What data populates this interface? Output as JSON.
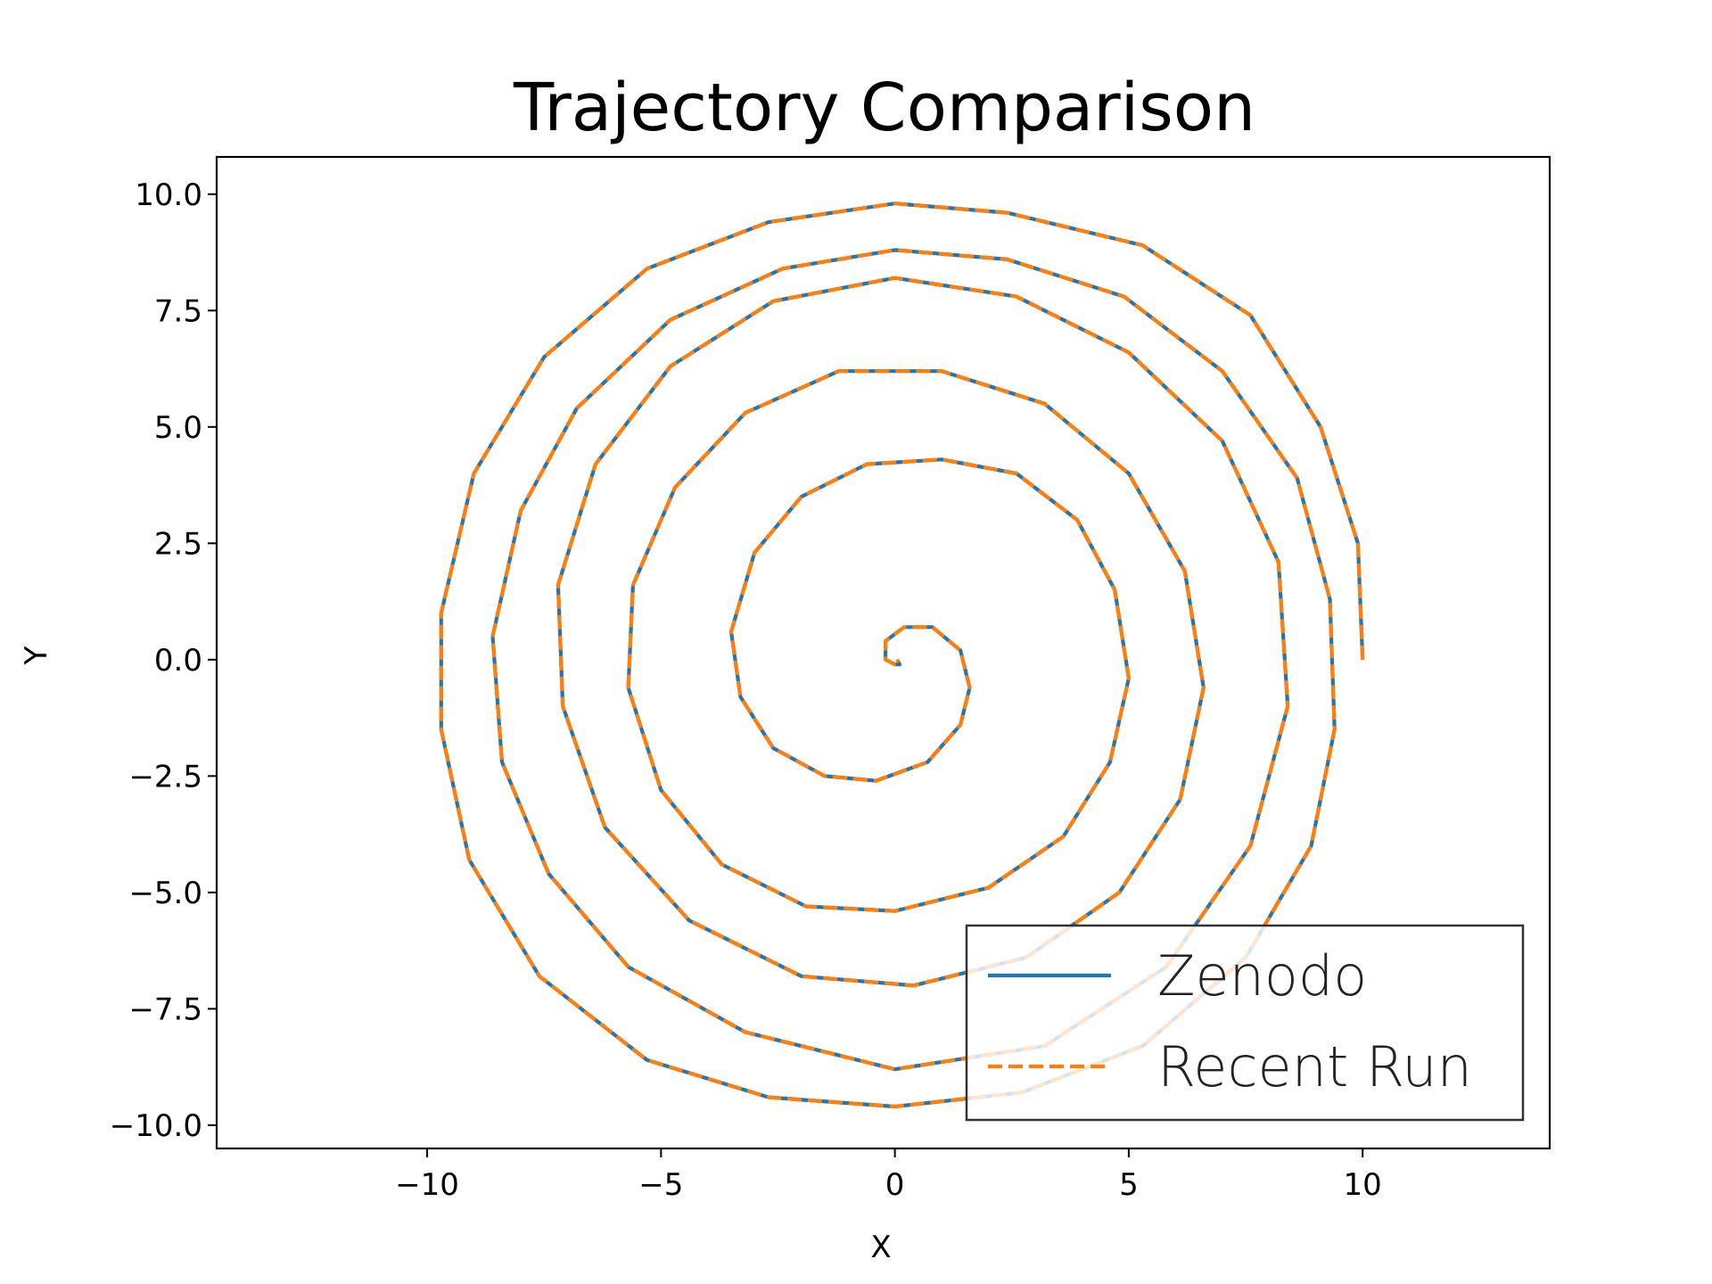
{
  "chart_data": {
    "type": "line",
    "title": "Trajectory Comparison",
    "xlabel": "X",
    "ylabel": "Y",
    "xlim": [
      -14.5,
      14.0
    ],
    "ylim": [
      -10.5,
      10.8
    ],
    "xticks": [
      -10,
      -5,
      0,
      5,
      10
    ],
    "yticks": [
      10.0,
      7.5,
      5.0,
      2.5,
      0.0,
      -2.5,
      -5.0,
      -7.5,
      -10.0
    ],
    "xtick_labels": [
      "−10",
      "−5",
      "0",
      "5",
      "10"
    ],
    "ytick_labels": [
      "10.0",
      "7.5",
      "5.0",
      "2.5",
      "0.0",
      "−2.5",
      "−5.0",
      "−7.5",
      "−10.0"
    ],
    "grid": false,
    "legend_position": "lower right",
    "series": [
      {
        "name": "Zenodo",
        "color": "#1f77b4",
        "style": "solid",
        "points": [
          [
            10.0,
            0.0
          ],
          [
            9.9,
            2.5
          ],
          [
            9.1,
            5.0
          ],
          [
            7.6,
            7.4
          ],
          [
            5.3,
            8.9
          ],
          [
            2.4,
            9.6
          ],
          [
            0.0,
            9.8
          ],
          [
            -2.7,
            9.4
          ],
          [
            -5.3,
            8.4
          ],
          [
            -7.5,
            6.5
          ],
          [
            -9.0,
            4.0
          ],
          [
            -9.7,
            1.0
          ],
          [
            -9.7,
            -1.5
          ],
          [
            -9.1,
            -4.3
          ],
          [
            -7.6,
            -6.8
          ],
          [
            -5.3,
            -8.6
          ],
          [
            -2.7,
            -9.4
          ],
          [
            0.0,
            -9.6
          ],
          [
            2.7,
            -9.3
          ],
          [
            5.3,
            -8.3
          ],
          [
            7.5,
            -6.4
          ],
          [
            8.9,
            -4.0
          ],
          [
            9.4,
            -1.5
          ],
          [
            9.3,
            1.3
          ],
          [
            8.6,
            3.9
          ],
          [
            7.0,
            6.2
          ],
          [
            4.9,
            7.8
          ],
          [
            2.4,
            8.6
          ],
          [
            0.0,
            8.8
          ],
          [
            -2.4,
            8.4
          ],
          [
            -4.8,
            7.3
          ],
          [
            -6.8,
            5.4
          ],
          [
            -8.0,
            3.2
          ],
          [
            -8.6,
            0.5
          ],
          [
            -8.4,
            -2.2
          ],
          [
            -7.4,
            -4.6
          ],
          [
            -5.7,
            -6.6
          ],
          [
            -3.2,
            -8.0
          ],
          [
            0.0,
            -8.8
          ],
          [
            3.2,
            -8.3
          ],
          [
            5.8,
            -6.6
          ],
          [
            7.6,
            -4.0
          ],
          [
            8.4,
            -1.0
          ],
          [
            8.2,
            2.1
          ],
          [
            7.0,
            4.7
          ],
          [
            5.0,
            6.6
          ],
          [
            2.6,
            7.8
          ],
          [
            0.0,
            8.2
          ],
          [
            -2.6,
            7.7
          ],
          [
            -4.8,
            6.3
          ],
          [
            -6.4,
            4.2
          ],
          [
            -7.2,
            1.6
          ],
          [
            -7.1,
            -1.0
          ],
          [
            -6.2,
            -3.6
          ],
          [
            -4.4,
            -5.6
          ],
          [
            -2.0,
            -6.8
          ],
          [
            0.4,
            -7.0
          ],
          [
            2.8,
            -6.4
          ],
          [
            4.8,
            -5.0
          ],
          [
            6.1,
            -3.0
          ],
          [
            6.6,
            -0.6
          ],
          [
            6.2,
            1.9
          ],
          [
            5.0,
            4.0
          ],
          [
            3.2,
            5.5
          ],
          [
            1.0,
            6.2
          ],
          [
            -1.2,
            6.2
          ],
          [
            -3.2,
            5.3
          ],
          [
            -4.7,
            3.7
          ],
          [
            -5.6,
            1.6
          ],
          [
            -5.7,
            -0.6
          ],
          [
            -5.0,
            -2.8
          ],
          [
            -3.7,
            -4.4
          ],
          [
            -1.9,
            -5.3
          ],
          [
            0.0,
            -5.4
          ],
          [
            2.0,
            -4.9
          ],
          [
            3.6,
            -3.8
          ],
          [
            4.6,
            -2.2
          ],
          [
            5.0,
            -0.4
          ],
          [
            4.7,
            1.5
          ],
          [
            3.9,
            3.0
          ],
          [
            2.6,
            4.0
          ],
          [
            1.0,
            4.3
          ],
          [
            -0.6,
            4.2
          ],
          [
            -2.0,
            3.5
          ],
          [
            -3.0,
            2.3
          ],
          [
            -3.5,
            0.6
          ],
          [
            -3.3,
            -0.8
          ],
          [
            -2.6,
            -1.9
          ],
          [
            -1.5,
            -2.5
          ],
          [
            -0.4,
            -2.6
          ],
          [
            0.7,
            -2.2
          ],
          [
            1.4,
            -1.4
          ],
          [
            1.6,
            -0.6
          ],
          [
            1.4,
            0.2
          ],
          [
            0.8,
            0.7
          ],
          [
            0.2,
            0.7
          ],
          [
            -0.2,
            0.4
          ],
          [
            -0.2,
            0.0
          ],
          [
            0.0,
            -0.1
          ],
          [
            0.1,
            -0.1
          ],
          [
            0.05,
            0.0
          ]
        ]
      },
      {
        "name": "Recent Run",
        "color": "#ff7f0e",
        "style": "dashed",
        "same_as": "Zenodo"
      }
    ]
  }
}
